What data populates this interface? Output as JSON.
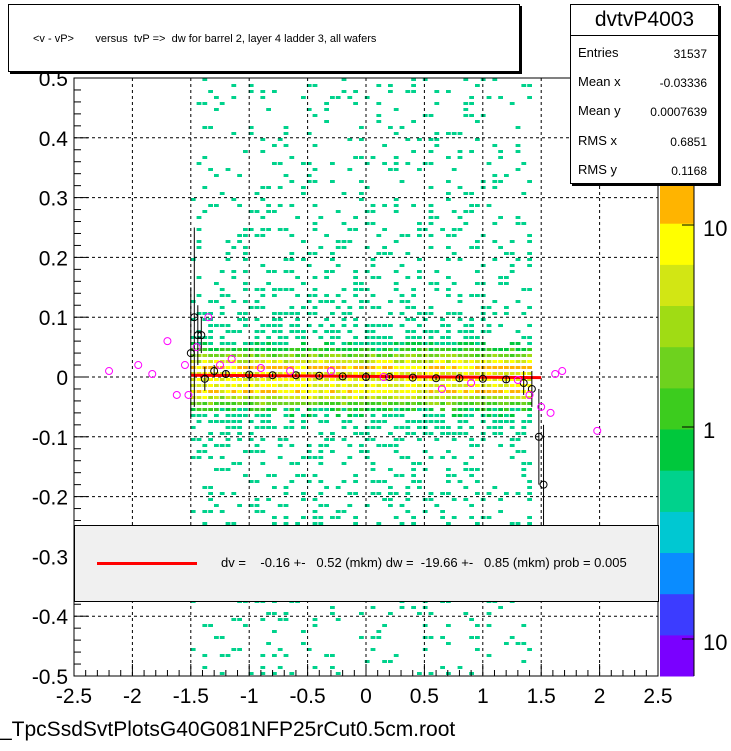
{
  "title": "<v - vP>       versus  tvP =>  dw for barrel 2, layer 4 ladder 3, all wafers",
  "stats": {
    "name": "dvtvP4003",
    "rows": [
      {
        "label": "Entries",
        "value": "31537"
      },
      {
        "label": "Mean x",
        "value": "-0.03336"
      },
      {
        "label": "Mean y",
        "value": "0.0007639"
      },
      {
        "label": "RMS x",
        "value": "0.6851"
      },
      {
        "label": "RMS y",
        "value": "0.1168"
      }
    ]
  },
  "fit_text": "dv =    -0.16 +-   0.52 (mkm) dw =  -19.66 +-   0.85 (mkm) prob = 0.005",
  "footer": "_TpcSsdSvtPlotsG40G081NFP25rCut0.5cm.root",
  "chart_data": {
    "type": "heatmap",
    "xlim": [
      -2.5,
      2.5
    ],
    "ylim": [
      -0.5,
      0.5
    ],
    "x_ticks": [
      "-2.5",
      "-2",
      "-1.5",
      "-1",
      "-0.5",
      "0",
      "0.5",
      "1",
      "1.5",
      "2",
      "2.5"
    ],
    "y_ticks": [
      "-0.5",
      "-0.4",
      "-0.3",
      "-0.2",
      "-0.1",
      "0",
      "0.1",
      "0.2",
      "0.3",
      "0.4",
      "0.5"
    ],
    "grid": true,
    "fill_x_range": [
      -1.5,
      1.4
    ],
    "colorbar": {
      "scale": "log",
      "labels": [
        "10",
        "1",
        "10"
      ],
      "colors": [
        "#7a00ff",
        "#3c3cff",
        "#0a8cff",
        "#00c8d2",
        "#00d28c",
        "#00c83c",
        "#3ccc1e",
        "#6ed21e",
        "#a0dc14",
        "#d2e614",
        "#ffff00",
        "#ffb400"
      ]
    },
    "fit_line": {
      "x": [
        -1.5,
        1.5
      ],
      "y": [
        0.003,
        -0.001
      ],
      "color": "#ff0000"
    },
    "profile_black": [
      {
        "x": -1.5,
        "y": 0.04,
        "err": 0.11
      },
      {
        "x": -1.47,
        "y": 0.1,
        "err": 0.15
      },
      {
        "x": -1.44,
        "y": 0.07,
        "err": 0.05
      },
      {
        "x": -1.41,
        "y": 0.07,
        "err": 0.03
      },
      {
        "x": -1.38,
        "y": -0.003,
        "err": 0.02
      },
      {
        "x": -1.3,
        "y": 0.01,
        "err": 0.01
      },
      {
        "x": -1.2,
        "y": 0.005,
        "err": 0.005
      },
      {
        "x": -1.0,
        "y": 0.004,
        "err": 0.004
      },
      {
        "x": -0.8,
        "y": 0.003,
        "err": 0.003
      },
      {
        "x": -0.6,
        "y": 0.003,
        "err": 0.003
      },
      {
        "x": -0.4,
        "y": 0.002,
        "err": 0.003
      },
      {
        "x": -0.2,
        "y": 0.001,
        "err": 0.003
      },
      {
        "x": 0.0,
        "y": 0.0,
        "err": 0.003
      },
      {
        "x": 0.2,
        "y": 0.0,
        "err": 0.003
      },
      {
        "x": 0.4,
        "y": -0.001,
        "err": 0.003
      },
      {
        "x": 0.6,
        "y": -0.002,
        "err": 0.003
      },
      {
        "x": 0.8,
        "y": -0.002,
        "err": 0.004
      },
      {
        "x": 1.0,
        "y": -0.003,
        "err": 0.004
      },
      {
        "x": 1.2,
        "y": -0.004,
        "err": 0.006
      },
      {
        "x": 1.35,
        "y": -0.01,
        "err": 0.02
      },
      {
        "x": 1.42,
        "y": -0.02,
        "err": 0.03
      },
      {
        "x": 1.48,
        "y": -0.1,
        "err": 0.08
      },
      {
        "x": 1.52,
        "y": -0.18,
        "err": 0.1
      }
    ],
    "profile_magenta": [
      {
        "x": -2.2,
        "y": 0.01
      },
      {
        "x": -1.95,
        "y": 0.02
      },
      {
        "x": -1.83,
        "y": 0.005
      },
      {
        "x": -1.7,
        "y": 0.06
      },
      {
        "x": -1.62,
        "y": -0.03
      },
      {
        "x": -1.55,
        "y": 0.02
      },
      {
        "x": -1.52,
        "y": -0.03
      },
      {
        "x": -1.45,
        "y": 0.05
      },
      {
        "x": -1.35,
        "y": 0.1
      },
      {
        "x": -1.25,
        "y": 0.02
      },
      {
        "x": -1.15,
        "y": 0.03
      },
      {
        "x": -0.9,
        "y": 0.015
      },
      {
        "x": -0.65,
        "y": 0.01
      },
      {
        "x": -0.3,
        "y": 0.01
      },
      {
        "x": 0.15,
        "y": 0.0
      },
      {
        "x": 0.65,
        "y": -0.02
      },
      {
        "x": 0.9,
        "y": -0.01
      },
      {
        "x": 1.3,
        "y": -0.005
      },
      {
        "x": 1.4,
        "y": -0.03
      },
      {
        "x": 1.5,
        "y": -0.05
      },
      {
        "x": 1.58,
        "y": -0.06
      },
      {
        "x": 1.62,
        "y": 0.005
      },
      {
        "x": 1.68,
        "y": 0.01
      },
      {
        "x": 1.98,
        "y": -0.09
      }
    ]
  }
}
